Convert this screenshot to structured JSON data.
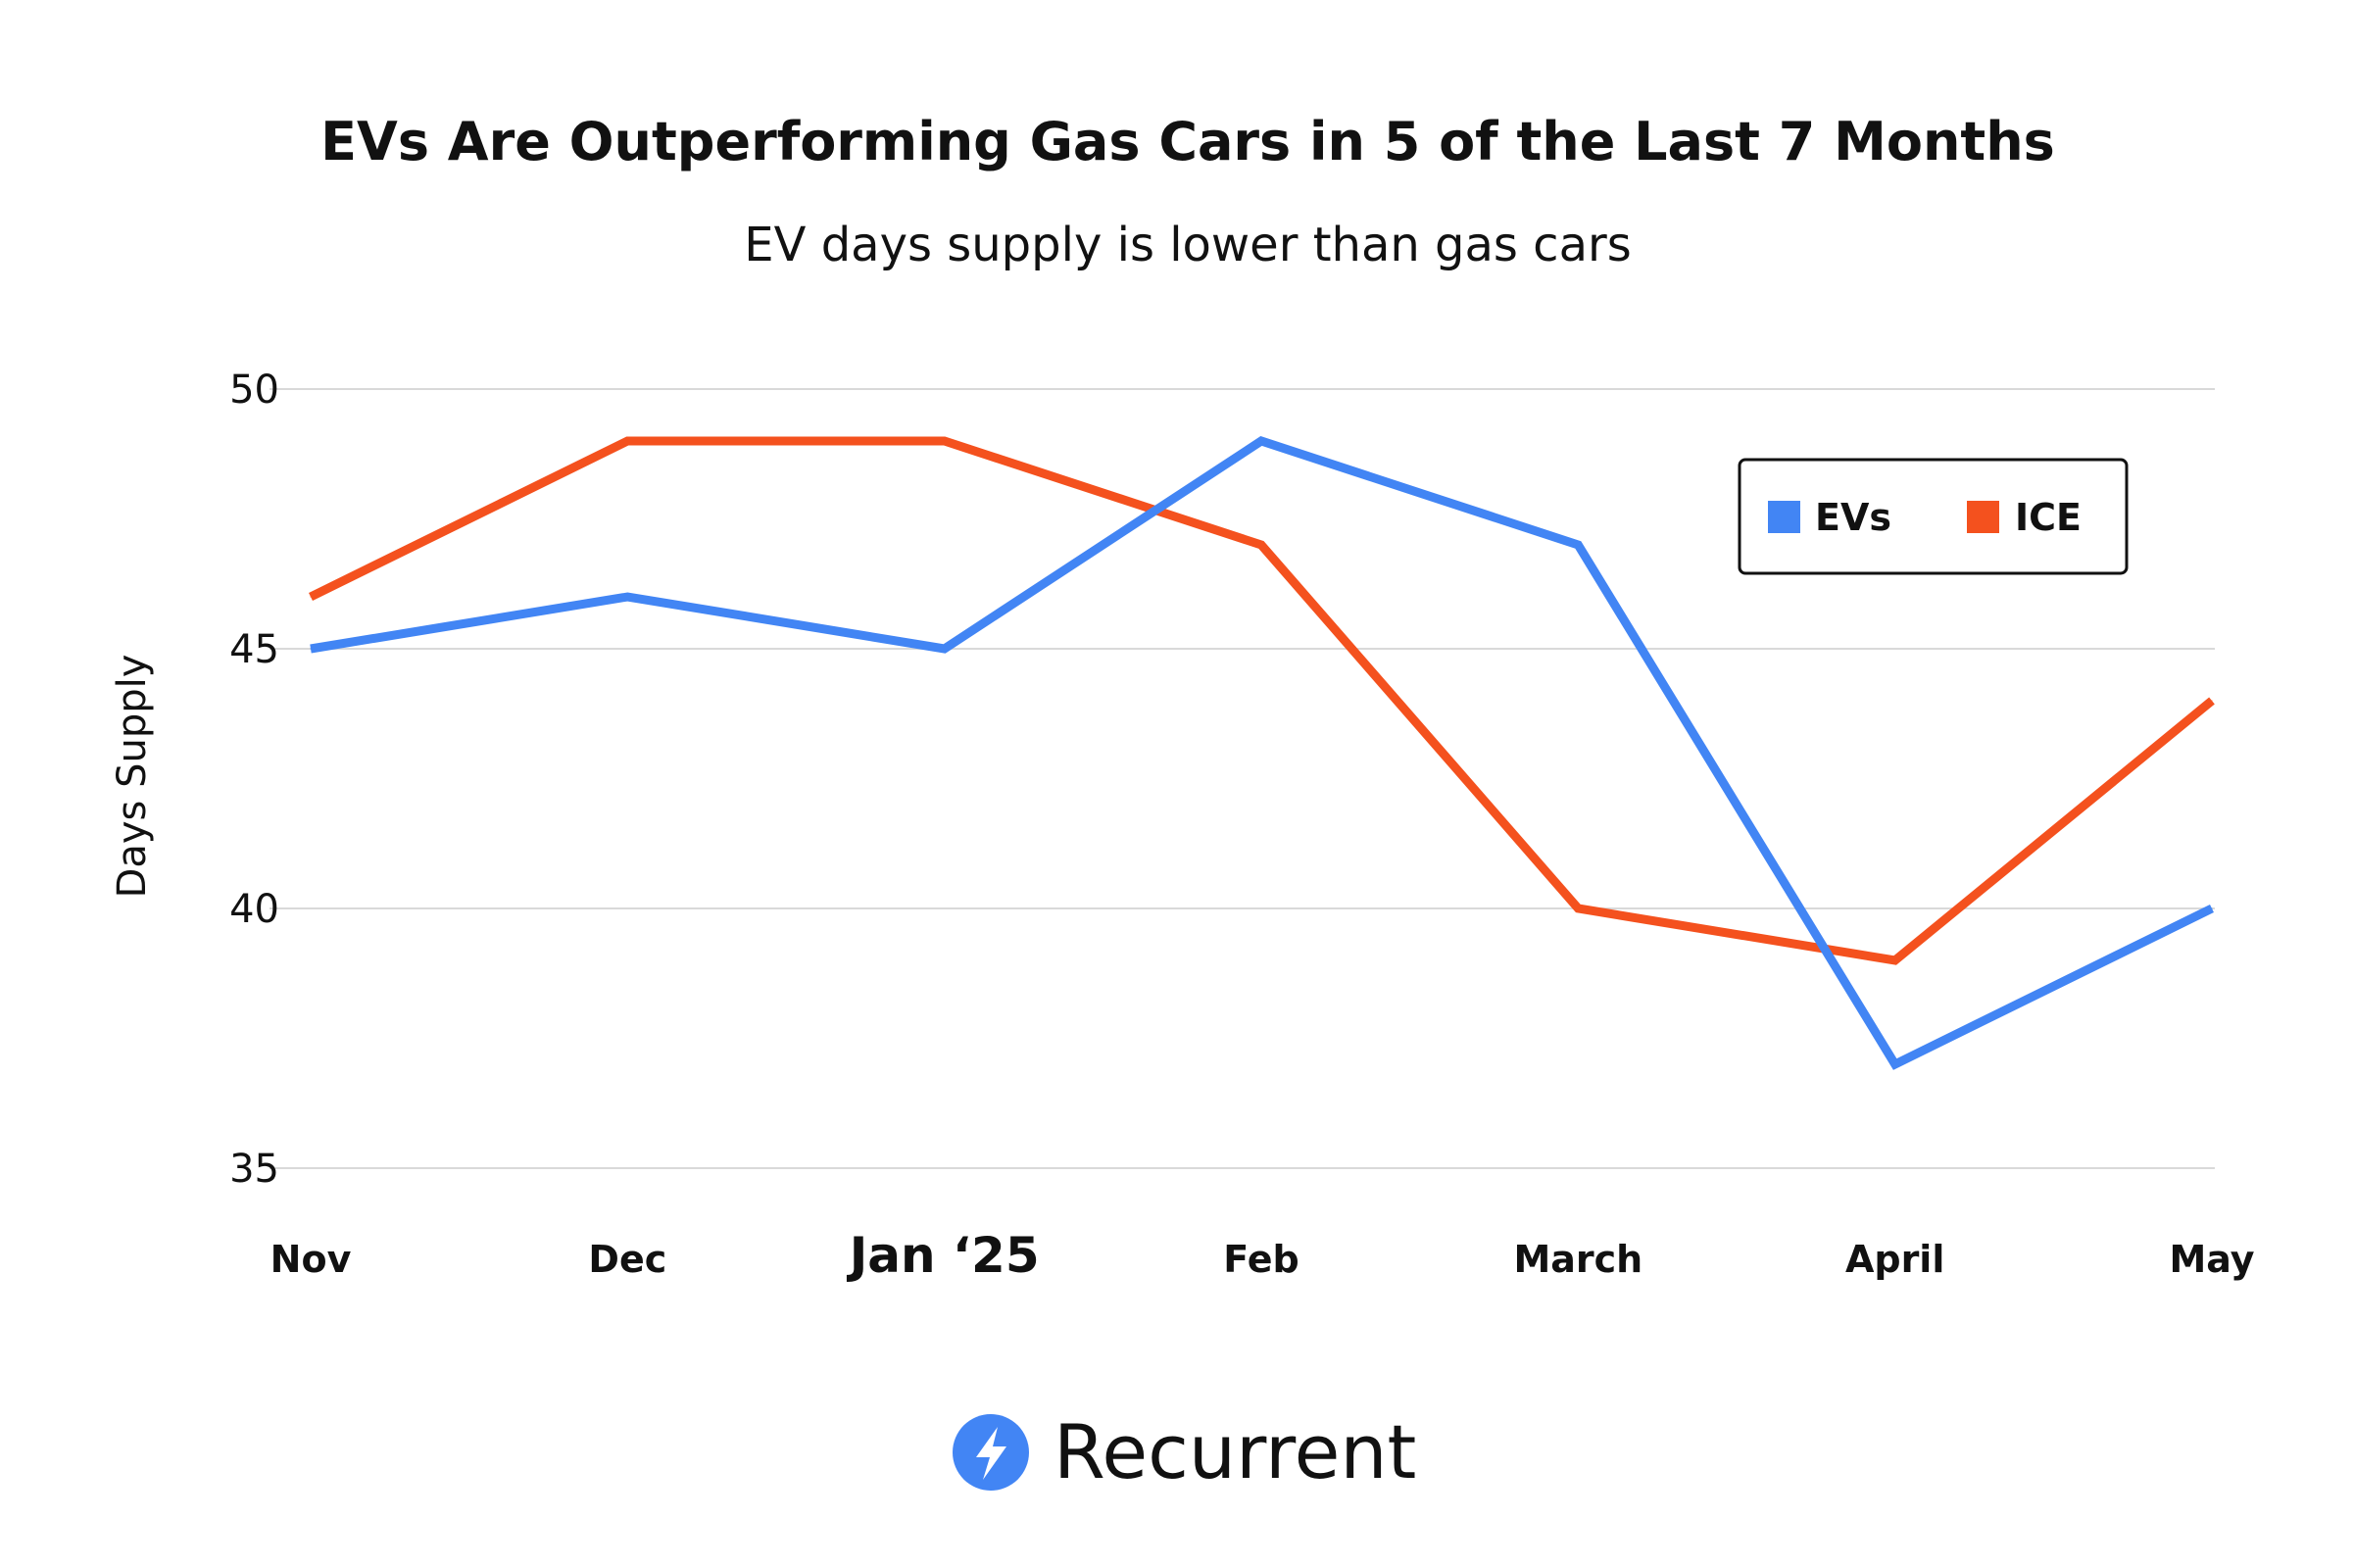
{
  "chart_data": {
    "type": "line",
    "title": "EVs Are Outperforming Gas Cars in 5 of the Last 7 Months",
    "subtitle": "EV days supply is lower than gas cars",
    "xlabel": "",
    "ylabel": "Days Supply",
    "categories": [
      "Nov",
      "Dec",
      "Jan ‘25",
      "Feb",
      "March",
      "April",
      "May"
    ],
    "ylim": [
      35,
      50
    ],
    "yticks": [
      "35",
      "40",
      "45",
      "50"
    ],
    "grid": true,
    "legend_position": "top-right",
    "series": [
      {
        "name": "EVs",
        "color": "#4285F4",
        "values": [
          45,
          46,
          45,
          49,
          47,
          37,
          40
        ]
      },
      {
        "name": "ICE",
        "color": "#F4511E",
        "values": [
          46,
          49,
          49,
          47,
          40,
          39,
          44
        ]
      }
    ]
  },
  "brand": {
    "name": "Recurrent",
    "icon": "lightning-bolt-icon",
    "color": "#4285F4"
  }
}
